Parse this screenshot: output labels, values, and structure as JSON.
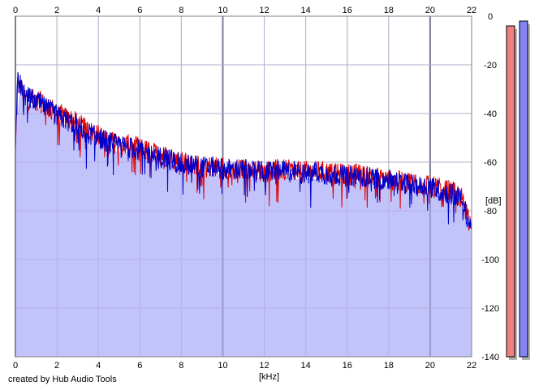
{
  "credit": "created by Hub Audio Tools",
  "chart_data": {
    "type": "area",
    "title": "",
    "xlabel": "[kHz]",
    "ylabel": "[dB]",
    "xlim": [
      0,
      22
    ],
    "ylim": [
      -140,
      0
    ],
    "x_ticks": [
      "0",
      "2",
      "4",
      "6",
      "8",
      "10",
      "12",
      "14",
      "16",
      "18",
      "20",
      "22"
    ],
    "y_ticks": [
      "0",
      "-20",
      "-40",
      "-60",
      "-80",
      "-100",
      "-120",
      "-140"
    ],
    "grid": true,
    "colors": {
      "fill": "#c3c3fb",
      "channel_1": "#e00000",
      "channel_2": "#0000cc",
      "meter_1": "#f08080",
      "meter_2": "#8484f4",
      "grid_minor": "#c0c0c0",
      "grid_major": "#808080"
    },
    "series": [
      {
        "color": "#e00000",
        "x": [
          0,
          0.1,
          0.3,
          0.5,
          1,
          1.5,
          2,
          2.5,
          3,
          3.5,
          4,
          4.5,
          5,
          5.5,
          6,
          6.5,
          7,
          7.5,
          8,
          8.5,
          9,
          9.5,
          10,
          10.5,
          11,
          11.5,
          12,
          12.5,
          13,
          13.5,
          14,
          14.5,
          15,
          15.5,
          16,
          16.5,
          17,
          17.5,
          18,
          18.5,
          19,
          19.5,
          20,
          20.5,
          21,
          21.5,
          22
        ],
        "values": [
          -56,
          -28,
          -30,
          -34,
          -34,
          -37,
          -40,
          -42,
          -44,
          -47,
          -49,
          -51,
          -53,
          -53,
          -54,
          -56,
          -57,
          -58,
          -60,
          -61,
          -61,
          -62,
          -62,
          -63,
          -63,
          -63,
          -64,
          -63,
          -63,
          -64,
          -64,
          -64,
          -64,
          -65,
          -65,
          -65,
          -66,
          -66,
          -67,
          -68,
          -68,
          -69,
          -70,
          -71,
          -72,
          -74,
          -86
        ]
      },
      {
        "color": "#0000cc",
        "x": [
          0,
          0.1,
          0.3,
          0.5,
          1,
          1.5,
          2,
          2.5,
          3,
          3.5,
          4,
          4.5,
          5,
          5.5,
          6,
          6.5,
          7,
          7.5,
          8,
          8.5,
          9,
          9.5,
          10,
          10.5,
          11,
          11.5,
          12,
          12.5,
          13,
          13.5,
          14,
          14.5,
          15,
          15.5,
          16,
          16.5,
          17,
          17.5,
          18,
          18.5,
          19,
          19.5,
          20,
          20.5,
          21,
          21.5,
          22
        ],
        "values": [
          -54,
          -27,
          -29,
          -33,
          -35,
          -38,
          -41,
          -43,
          -45,
          -48,
          -50,
          -52,
          -53,
          -54,
          -55,
          -57,
          -58,
          -59,
          -61,
          -61,
          -62,
          -62,
          -63,
          -63,
          -63,
          -64,
          -64,
          -63,
          -64,
          -64,
          -65,
          -64,
          -65,
          -65,
          -66,
          -65,
          -66,
          -67,
          -67,
          -68,
          -69,
          -70,
          -70,
          -72,
          -73,
          -75,
          -88
        ]
      }
    ],
    "meters": [
      {
        "color": "#f08080",
        "value": -4
      },
      {
        "color": "#8484f4",
        "value": -2
      }
    ]
  }
}
